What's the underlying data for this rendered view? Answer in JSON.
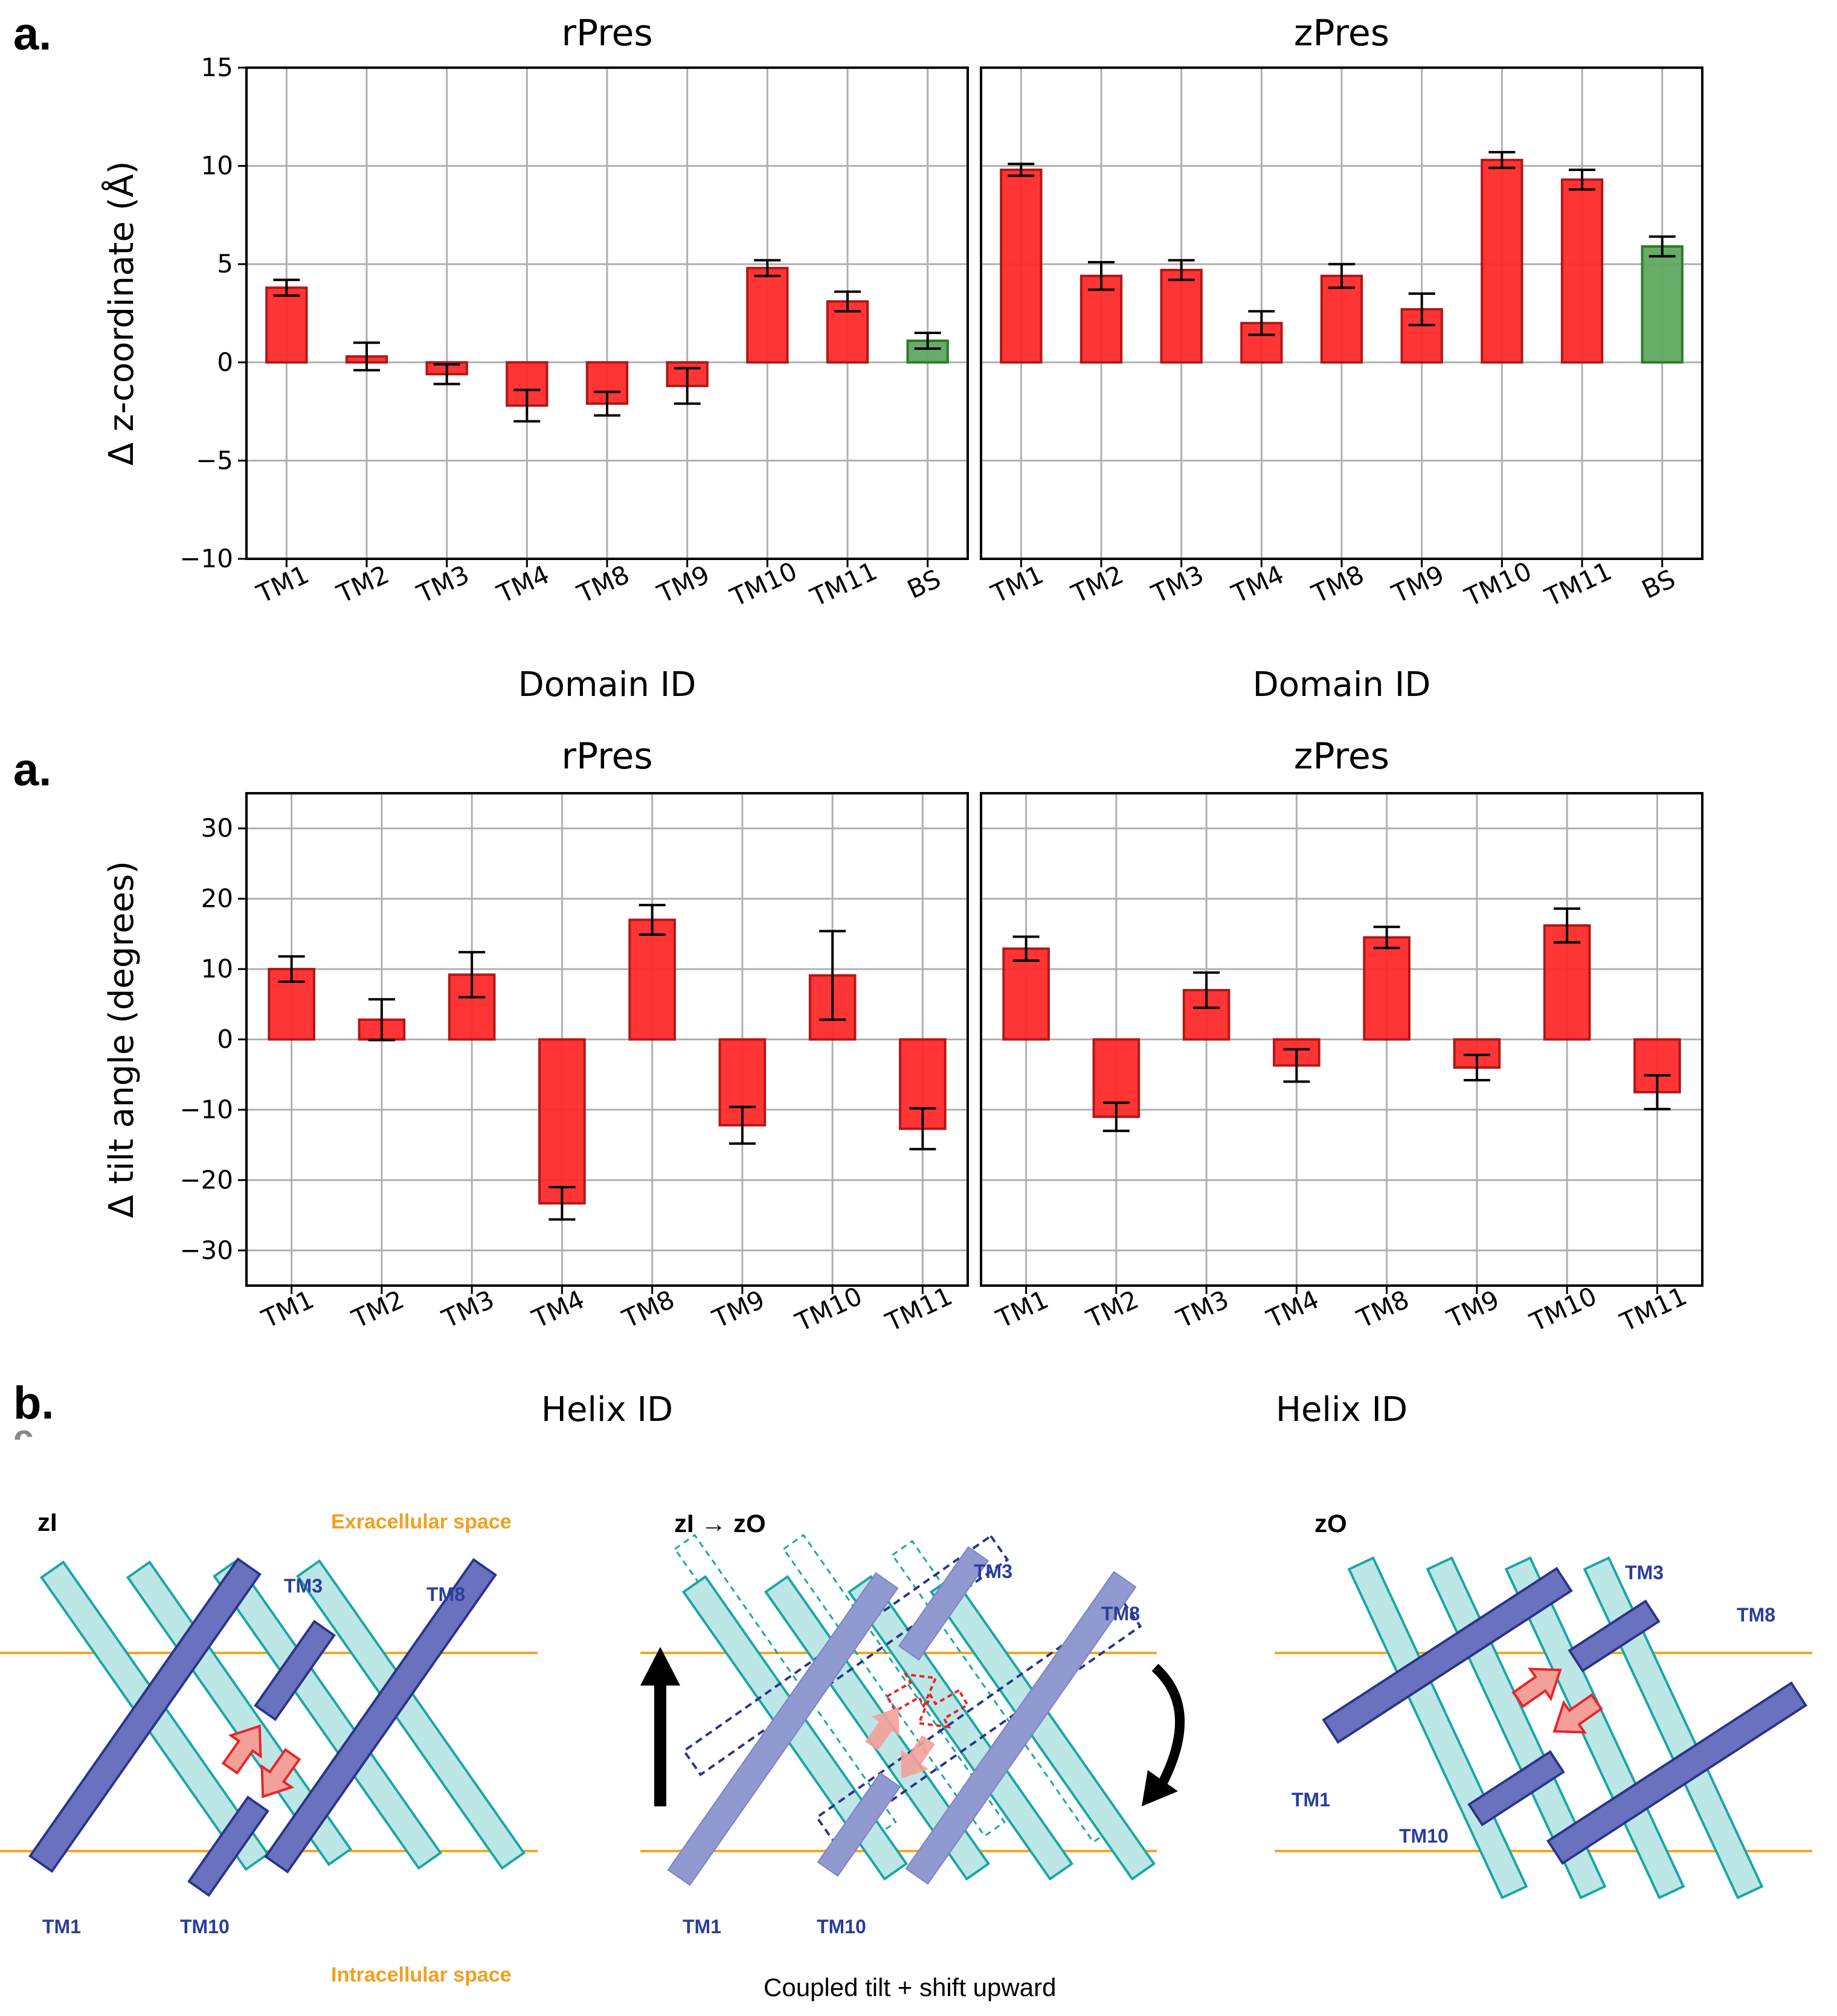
{
  "figure": {
    "panel_a1_letter": "a.",
    "panel_a2_letter": "a.",
    "panel_b_letter": "b.",
    "panel_b_fragment": "c."
  },
  "chart_data": [
    {
      "type": "bar",
      "id": "zcoord",
      "ylabel": "Δ z-coordinate (Å)",
      "xlabel": "Domain ID",
      "ylim": [
        -10,
        15
      ],
      "yticks": [
        -10,
        -5,
        0,
        5,
        10,
        15
      ],
      "ytick_labels": [
        "−10",
        "−5",
        "0",
        "5",
        "10",
        "15"
      ],
      "grid": true,
      "categories": [
        "TM1",
        "TM2",
        "TM3",
        "TM4",
        "TM8",
        "TM9",
        "TM10",
        "TM11",
        "BS"
      ],
      "colors": [
        "#ff2a2a",
        "#ff2a2a",
        "#ff2a2a",
        "#ff2a2a",
        "#ff2a2a",
        "#ff2a2a",
        "#ff2a2a",
        "#ff2a2a",
        "#5fa85f"
      ],
      "edge_colors": [
        "#b01818",
        "#b01818",
        "#b01818",
        "#b01818",
        "#b01818",
        "#b01818",
        "#b01818",
        "#b01818",
        "#2f7a2f"
      ],
      "series": [
        {
          "name": "rPres",
          "values": [
            3.8,
            0.3,
            -0.6,
            -2.2,
            -2.1,
            -1.2,
            4.8,
            3.1,
            1.1
          ],
          "errors": [
            0.4,
            0.7,
            0.5,
            0.8,
            0.6,
            0.9,
            0.4,
            0.5,
            0.4
          ]
        },
        {
          "name": "zPres",
          "values": [
            9.8,
            4.4,
            4.7,
            2.0,
            4.4,
            2.7,
            10.3,
            9.3,
            5.9
          ],
          "errors": [
            0.3,
            0.7,
            0.5,
            0.6,
            0.6,
            0.8,
            0.4,
            0.5,
            0.5
          ]
        }
      ]
    },
    {
      "type": "bar",
      "id": "tilt",
      "ylabel": "Δ tilt angle (degrees)",
      "xlabel": "Helix ID",
      "ylim": [
        -35,
        35
      ],
      "yticks": [
        -30,
        -20,
        -10,
        0,
        10,
        20,
        30
      ],
      "ytick_labels": [
        "−30",
        "−20",
        "−10",
        "0",
        "10",
        "20",
        "30"
      ],
      "grid": true,
      "categories": [
        "TM1",
        "TM2",
        "TM3",
        "TM4",
        "TM8",
        "TM9",
        "TM10",
        "TM11"
      ],
      "colors": [
        "#ff2a2a",
        "#ff2a2a",
        "#ff2a2a",
        "#ff2a2a",
        "#ff2a2a",
        "#ff2a2a",
        "#ff2a2a",
        "#ff2a2a"
      ],
      "edge_colors": [
        "#b01818",
        "#b01818",
        "#b01818",
        "#b01818",
        "#b01818",
        "#b01818",
        "#b01818",
        "#b01818"
      ],
      "series": [
        {
          "name": "rPres",
          "values": [
            10,
            2.8,
            9.2,
            -23.3,
            17.0,
            -12.2,
            9.1,
            -12.7
          ],
          "errors": [
            1.8,
            2.9,
            3.2,
            2.3,
            2.1,
            2.6,
            6.3,
            2.9
          ]
        },
        {
          "name": "zPres",
          "values": [
            12.9,
            -11.0,
            7.0,
            -3.7,
            14.5,
            -4.0,
            16.2,
            -7.5
          ],
          "errors": [
            1.7,
            2.0,
            2.5,
            2.3,
            1.5,
            1.8,
            2.4,
            2.4
          ]
        }
      ]
    }
  ],
  "diagram": {
    "states": [
      {
        "name": "zI",
        "title": "zI"
      },
      {
        "name": "transition",
        "title": "zI → zO"
      },
      {
        "name": "zO",
        "title": "zO"
      }
    ],
    "extracellular_label": "Exracellular space",
    "intracellular_label": "Intracellular space",
    "helix_labels": {
      "tm1": "TM1",
      "tm3": "TM3",
      "tm8": "TM8",
      "tm10": "TM10"
    },
    "caption": "Coupled tilt + shift upward",
    "colors": {
      "membrane_line": "#f5a623",
      "light_helix_fill": "#bde6e6",
      "light_helix_stroke": "#1aa6a6",
      "dark_helix_fill": "#6a72bf",
      "dark_helix_stroke": "#2b3588",
      "arrow_fill": "#f4a09a",
      "arrow_stroke": "#e8242b"
    }
  }
}
